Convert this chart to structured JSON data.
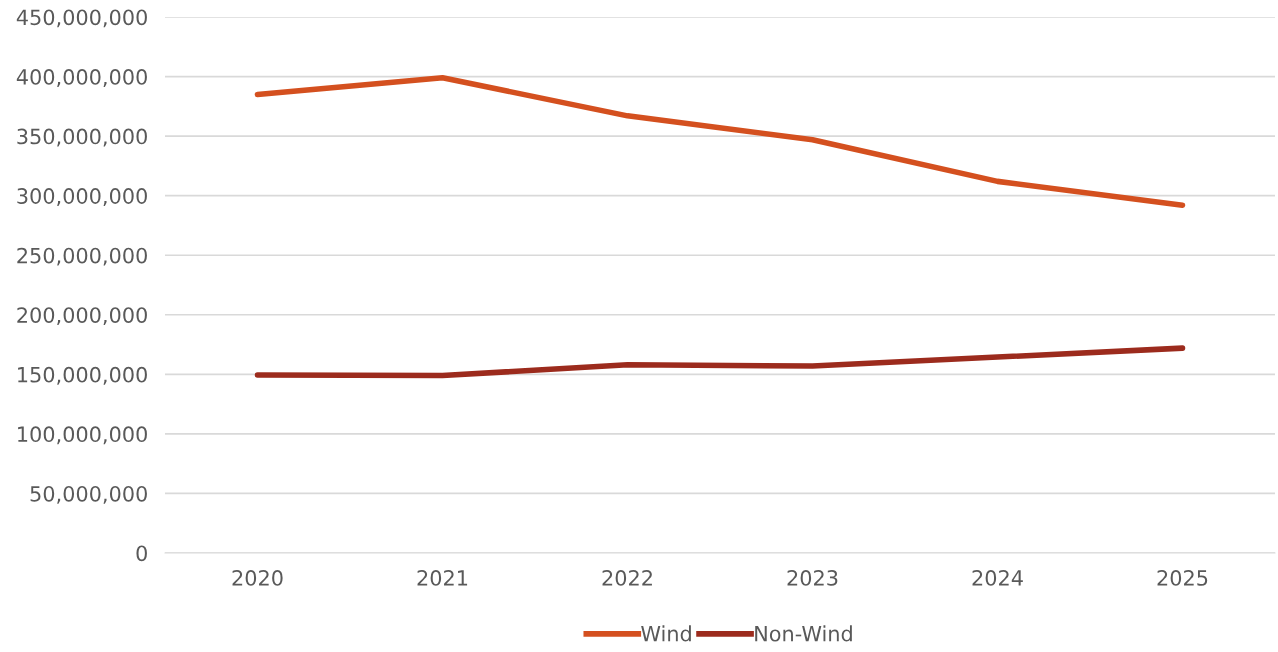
{
  "chart_data": {
    "type": "line",
    "categories": [
      "2020",
      "2021",
      "2022",
      "2023",
      "2024",
      "2025"
    ],
    "series": [
      {
        "name": "Wind",
        "color": "#d4501f",
        "values": [
          385000000,
          399000000,
          367000000,
          347000000,
          312000000,
          292000000
        ]
      },
      {
        "name": "Non-Wind",
        "color": "#9c2b1d",
        "values": [
          149500000,
          149000000,
          158000000,
          157000000,
          164500000,
          172000000
        ]
      }
    ],
    "ylim": [
      0,
      450000000
    ],
    "yticks": [
      {
        "value": 0,
        "label": "0"
      },
      {
        "value": 50000000,
        "label": "50,000,000"
      },
      {
        "value": 100000000,
        "label": "100,000,000"
      },
      {
        "value": 150000000,
        "label": "150,000,000"
      },
      {
        "value": 200000000,
        "label": "200,000,000"
      },
      {
        "value": 250000000,
        "label": "250,000,000"
      },
      {
        "value": 300000000,
        "label": "300,000,000"
      },
      {
        "value": 350000000,
        "label": "350,000,000"
      },
      {
        "value": 400000000,
        "label": "400,000,000"
      },
      {
        "value": 450000000,
        "label": "450,000,000"
      }
    ],
    "grid": "y",
    "legend": "bottom",
    "marker": "none",
    "line_style": "solid"
  }
}
